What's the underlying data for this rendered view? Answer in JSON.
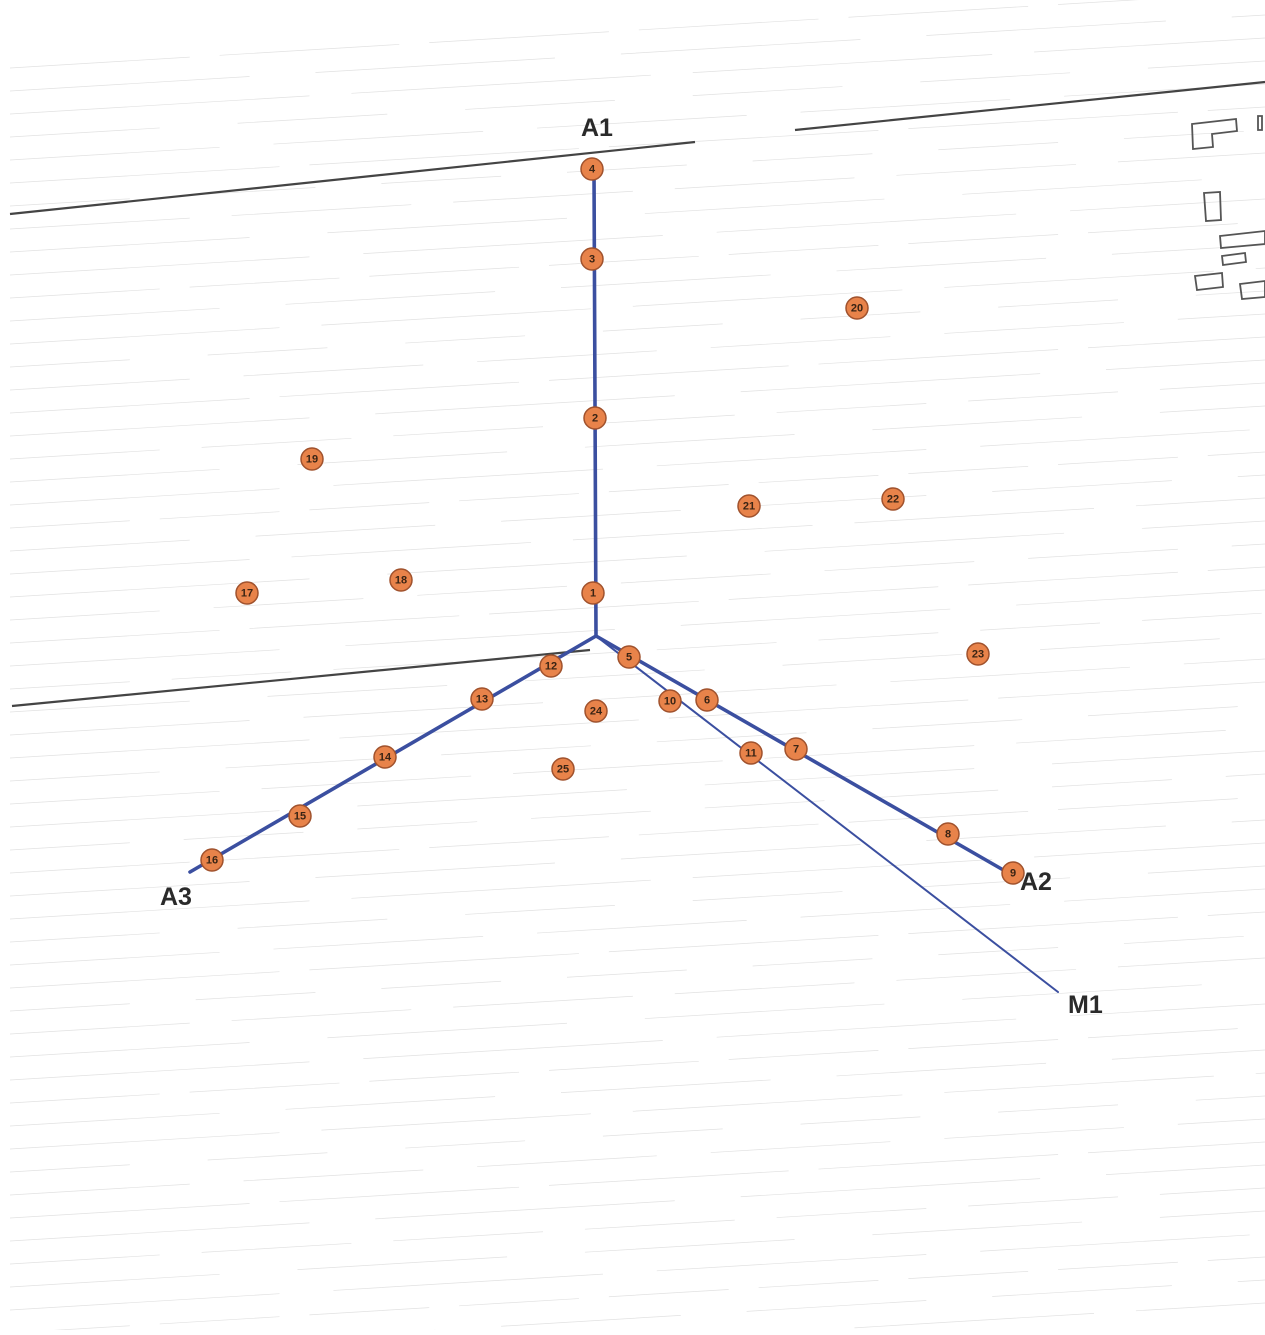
{
  "diagram": {
    "colors": {
      "background": "#ffffff",
      "axis_line": "#3b4fa0",
      "marker_fill": "#e8834a",
      "marker_stroke": "#a0522d",
      "marker_text": "#3a2414",
      "scan_line": "#c9c9c9",
      "border_line": "#444444",
      "label_text": "#2a2a2a"
    },
    "axis_labels": {
      "a1": "A1",
      "a2": "A2",
      "a3": "A3",
      "m1": "M1"
    },
    "markers": [
      {
        "id": "1",
        "label": "1"
      },
      {
        "id": "2",
        "label": "2"
      },
      {
        "id": "3",
        "label": "3"
      },
      {
        "id": "4",
        "label": "4"
      },
      {
        "id": "5",
        "label": "5"
      },
      {
        "id": "6",
        "label": "6"
      },
      {
        "id": "7",
        "label": "7"
      },
      {
        "id": "8",
        "label": "8"
      },
      {
        "id": "9",
        "label": "9"
      },
      {
        "id": "10",
        "label": "10"
      },
      {
        "id": "11",
        "label": "11"
      },
      {
        "id": "12",
        "label": "12"
      },
      {
        "id": "13",
        "label": "13"
      },
      {
        "id": "14",
        "label": "14"
      },
      {
        "id": "15",
        "label": "15"
      },
      {
        "id": "16",
        "label": "16"
      },
      {
        "id": "17",
        "label": "17"
      },
      {
        "id": "18",
        "label": "18"
      },
      {
        "id": "19",
        "label": "19"
      },
      {
        "id": "20",
        "label": "20"
      },
      {
        "id": "21",
        "label": "21"
      },
      {
        "id": "22",
        "label": "22"
      },
      {
        "id": "23",
        "label": "23"
      },
      {
        "id": "24",
        "label": "24"
      },
      {
        "id": "25",
        "label": "25"
      }
    ]
  }
}
